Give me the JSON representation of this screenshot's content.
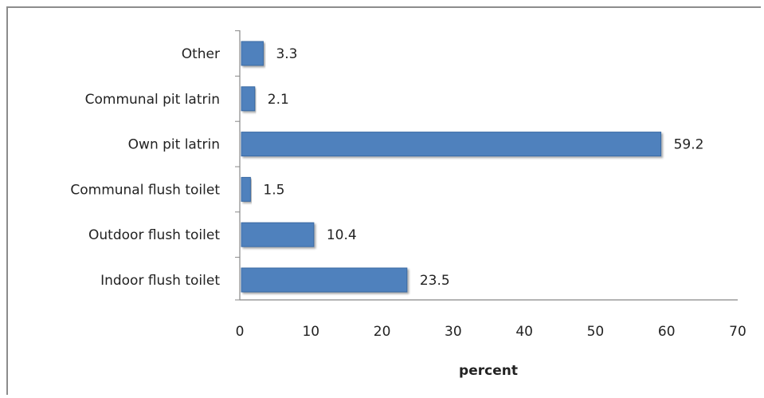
{
  "chart_data": {
    "type": "bar",
    "orientation": "horizontal",
    "categories": [
      "Other",
      "Communal pit latrin",
      "Own pit latrin",
      "Communal flush toilet",
      "Outdoor flush toilet",
      "Indoor flush toilet"
    ],
    "values": [
      3.3,
      2.1,
      59.2,
      1.5,
      10.4,
      23.5
    ],
    "value_labels": [
      "3.3",
      "2.1",
      "59.2",
      "1.5",
      "10.4",
      "23.5"
    ],
    "xlabel": "percent",
    "xlim": [
      0,
      70
    ],
    "xticks": [
      "0",
      "10",
      "20",
      "30",
      "40",
      "50",
      "60",
      "70"
    ],
    "grid": false,
    "legend": "none",
    "colors": {
      "bar": "#4f81bd",
      "bar_edge": "#3a6aa3"
    }
  }
}
